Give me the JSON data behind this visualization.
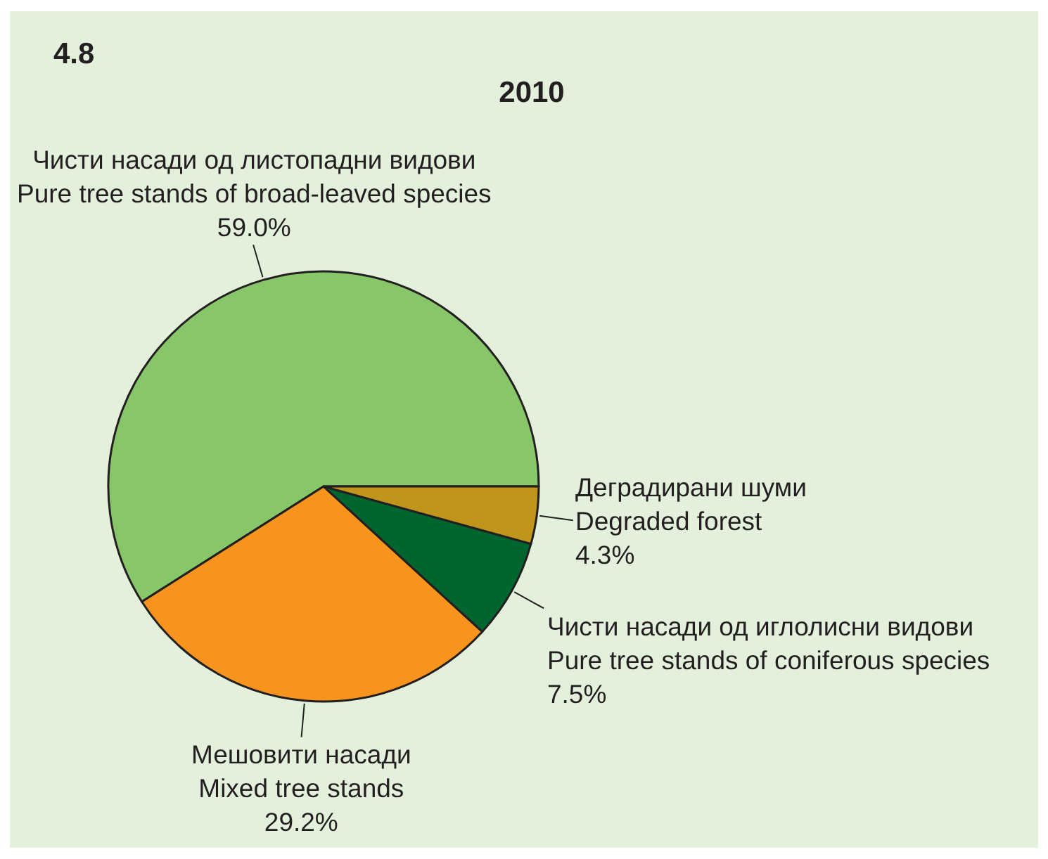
{
  "chart_data": {
    "type": "pie",
    "title": "2010",
    "annotations": [
      "4.8"
    ],
    "categories": [
      "Чисти насади од листопадни видови\nPure tree stands of broad-leaved species",
      "Мешовити насади\nMixed tree stands",
      "Чисти насади од иглолисни видови\nPure tree stands of coniferous species",
      "Деградирани шуми\nDegraded forest"
    ],
    "values": [
      59.0,
      29.2,
      7.5,
      4.3
    ],
    "value_labels": [
      "59.0%",
      "29.2%",
      "7.5%",
      "4.3%"
    ],
    "colors": [
      "#88c66a",
      "#f7941d",
      "#00662f",
      "#c0951c"
    ],
    "legend": false
  }
}
